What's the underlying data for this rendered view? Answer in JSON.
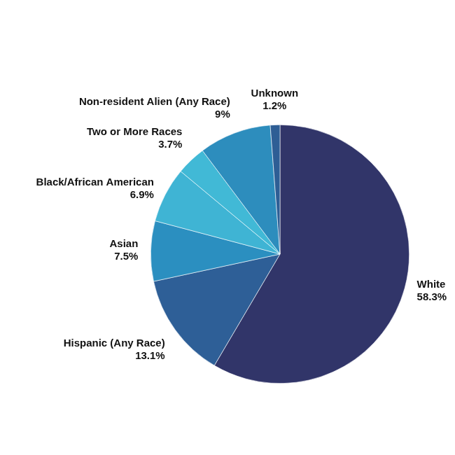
{
  "chart_data": {
    "type": "pie",
    "categories": [
      "White",
      "Hispanic (Any Race)",
      "Asian",
      "Black/African American",
      "Two or More Races",
      "Non-resident Alien (Any Race)",
      "Unknown"
    ],
    "values": [
      58.3,
      13.1,
      7.5,
      6.9,
      3.7,
      9,
      1.2
    ],
    "value_labels": [
      "58.3%",
      "13.1%",
      "7.5%",
      "6.9%",
      "3.7%",
      "9%",
      "1.2%"
    ],
    "colors": [
      "#313569",
      "#2e5f97",
      "#2b8fc0",
      "#3fb4d4",
      "#41b9d6",
      "#2d8dbd",
      "#2e5e95"
    ],
    "data_labels": true
  }
}
